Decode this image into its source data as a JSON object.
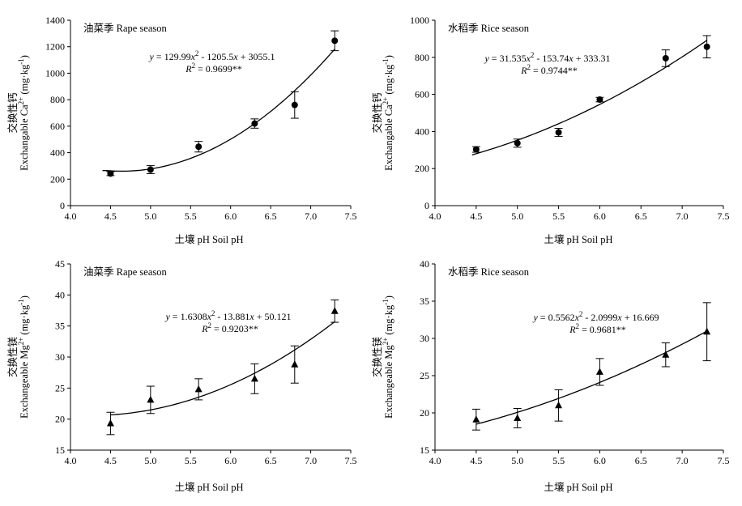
{
  "chart_data": [
    {
      "id": "top-left",
      "type": "scatter",
      "title": "油菜季 Rape season",
      "xlabel": "土壤 pH Soil pH",
      "ylabel_cn": "交换性钙",
      "ylabel_en_prefix": "Exchangable Ca",
      "ylabel_sup": "2+",
      "ylabel_units": " (mg·kg",
      "ylabel_units_sup": "-1",
      "ylabel_units_end": ")",
      "xlim": [
        4.0,
        7.5
      ],
      "ylim": [
        0,
        1400
      ],
      "xticks": [
        4.0,
        4.5,
        5.0,
        5.5,
        6.0,
        6.5,
        7.0,
        7.5
      ],
      "xtick_labels": [
        "4.0",
        "4.5",
        "5.0",
        "5.5",
        "6.0",
        "6.5",
        "7.0",
        "7.5"
      ],
      "yticks": [
        0,
        200,
        400,
        600,
        800,
        1000,
        1200,
        1400
      ],
      "ytick_labels": [
        "0",
        "200",
        "400",
        "600",
        "800",
        "1000",
        "1200",
        "1400"
      ],
      "marker": "circle",
      "points": [
        {
          "x": 4.5,
          "y": 242,
          "err": 15
        },
        {
          "x": 5.0,
          "y": 272,
          "err": 30
        },
        {
          "x": 5.6,
          "y": 445,
          "err": 40
        },
        {
          "x": 6.3,
          "y": 620,
          "err": 35
        },
        {
          "x": 6.8,
          "y": 760,
          "err": 100
        },
        {
          "x": 7.3,
          "y": 1245,
          "err": 75
        }
      ],
      "fit": {
        "a": 129.99,
        "b": -1205.5,
        "c": 3055.1,
        "xmin": 4.45,
        "xmax": 7.3,
        "guide_start": 4.4
      },
      "equation": {
        "y_lhs": "y",
        "eq_mid": " = 129.99",
        "x_var": "x",
        "exp": "2",
        "eq_rest": " - 1205.5",
        "eq_tail": " + 3055.1",
        "r_sym": "R",
        "r_exp": "2",
        "r_val": " = 0.9699**"
      }
    },
    {
      "id": "top-right",
      "type": "scatter",
      "title": "水稻季 Rice season",
      "xlabel": "土壤 pH Soil pH",
      "ylabel_cn": "交换性钙",
      "ylabel_en_prefix": "Exchangable Ca",
      "ylabel_sup": "2+",
      "ylabel_units": " (mg·kg",
      "ylabel_units_sup": "-1",
      "ylabel_units_end": ")",
      "xlim": [
        4.0,
        7.5
      ],
      "ylim": [
        0,
        1000
      ],
      "xticks": [
        4.0,
        4.5,
        5.0,
        5.5,
        6.0,
        6.5,
        7.0,
        7.5
      ],
      "xtick_labels": [
        "4.0",
        "4.5",
        "5.0",
        "5.5",
        "6.0",
        "6.5",
        "7.0",
        "7.5"
      ],
      "yticks": [
        0,
        200,
        400,
        600,
        800,
        1000
      ],
      "ytick_labels": [
        "0",
        "200",
        "400",
        "600",
        "800",
        "1000"
      ],
      "marker": "circle",
      "points": [
        {
          "x": 4.5,
          "y": 303,
          "err": 15
        },
        {
          "x": 5.0,
          "y": 337,
          "err": 22
        },
        {
          "x": 5.5,
          "y": 395,
          "err": 22
        },
        {
          "x": 6.0,
          "y": 572,
          "err": 12
        },
        {
          "x": 6.8,
          "y": 795,
          "err": 45
        },
        {
          "x": 7.3,
          "y": 857,
          "err": 60
        }
      ],
      "fit": {
        "a": 31.535,
        "b": -153.74,
        "c": 333.31,
        "xmin": 4.45,
        "xmax": 7.3,
        "guide_start": 4.45
      },
      "equation": {
        "y_lhs": "y",
        "eq_mid": " = 31.535",
        "x_var": "x",
        "exp": "2",
        "eq_rest": " - 153.74",
        "eq_tail": " + 333.31",
        "r_sym": "R",
        "r_exp": "2",
        "r_val": " = 0.9744**"
      }
    },
    {
      "id": "bottom-left",
      "type": "scatter",
      "title": "油菜季 Rape season",
      "xlabel": "土壤 pH Soil pH",
      "ylabel_cn": "交换性镁",
      "ylabel_en_prefix": "Exchangeable Mg",
      "ylabel_sup": "2+",
      "ylabel_units": " (mg·kg",
      "ylabel_units_sup": "-1",
      "ylabel_units_end": ")",
      "xlim": [
        4.0,
        7.5
      ],
      "ylim": [
        15,
        45
      ],
      "xticks": [
        4.0,
        4.5,
        5.0,
        5.5,
        6.0,
        6.5,
        7.0,
        7.5
      ],
      "xtick_labels": [
        "4.0",
        "4.5",
        "5.0",
        "5.5",
        "6.0",
        "6.5",
        "7.0",
        "7.5"
      ],
      "yticks": [
        15,
        20,
        25,
        30,
        35,
        40,
        45
      ],
      "ytick_labels": [
        "15",
        "20",
        "25",
        "30",
        "35",
        "40",
        "45"
      ],
      "marker": "triangle",
      "points": [
        {
          "x": 4.5,
          "y": 19.3,
          "err": 1.8
        },
        {
          "x": 5.0,
          "y": 23.1,
          "err": 2.2
        },
        {
          "x": 5.6,
          "y": 24.8,
          "err": 1.7
        },
        {
          "x": 6.3,
          "y": 26.5,
          "err": 2.4
        },
        {
          "x": 6.8,
          "y": 28.8,
          "err": 3.0
        },
        {
          "x": 7.3,
          "y": 37.4,
          "err": 1.8
        }
      ],
      "fit": {
        "a": 1.6308,
        "b": -13.881,
        "c": 50.121,
        "xmin": 4.5,
        "xmax": 7.3,
        "guide_start": 4.5
      },
      "equation": {
        "y_lhs": "y",
        "eq_mid": " = 1.6308",
        "x_var": "x",
        "exp": "2",
        "eq_rest": " - 13.881",
        "eq_tail": " + 50.121",
        "r_sym": "R",
        "r_exp": "2",
        "r_val": " = 0.9203**"
      }
    },
    {
      "id": "bottom-right",
      "type": "scatter",
      "title": "水稻季 Rice season",
      "xlabel": "土壤 pH Soil pH",
      "ylabel_cn": "交换性镁",
      "ylabel_en_prefix": "Exchangeable Mg",
      "ylabel_sup": "2+",
      "ylabel_units": " (mg·kg",
      "ylabel_units_sup": "-1",
      "ylabel_units_end": ")",
      "xlim": [
        4.0,
        7.5
      ],
      "ylim": [
        15,
        40
      ],
      "xticks": [
        4.0,
        4.5,
        5.0,
        5.5,
        6.0,
        6.5,
        7.0,
        7.5
      ],
      "xtick_labels": [
        "4.0",
        "4.5",
        "5.0",
        "5.5",
        "6.0",
        "6.5",
        "7.0",
        "7.5"
      ],
      "yticks": [
        15,
        20,
        25,
        30,
        35,
        40
      ],
      "ytick_labels": [
        "15",
        "20",
        "25",
        "30",
        "35",
        "40"
      ],
      "marker": "triangle",
      "points": [
        {
          "x": 4.5,
          "y": 19.1,
          "err": 1.4
        },
        {
          "x": 5.0,
          "y": 19.3,
          "err": 1.3
        },
        {
          "x": 5.5,
          "y": 21.0,
          "err": 2.1
        },
        {
          "x": 6.0,
          "y": 25.5,
          "err": 1.8
        },
        {
          "x": 6.8,
          "y": 27.8,
          "err": 1.6
        },
        {
          "x": 7.3,
          "y": 30.9,
          "err": 3.9
        }
      ],
      "fit": {
        "a": 0.5562,
        "b": -2.0999,
        "c": 16.669,
        "xmin": 4.5,
        "xmax": 7.3,
        "guide_start": 4.5
      },
      "equation": {
        "y_lhs": "y",
        "eq_mid": " = 0.5562",
        "x_var": "x",
        "exp": "2",
        "eq_rest": " - 2.0999",
        "eq_tail": " + 16.669",
        "r_sym": "R",
        "r_exp": "2",
        "r_val": " = 0.9681**"
      }
    }
  ]
}
